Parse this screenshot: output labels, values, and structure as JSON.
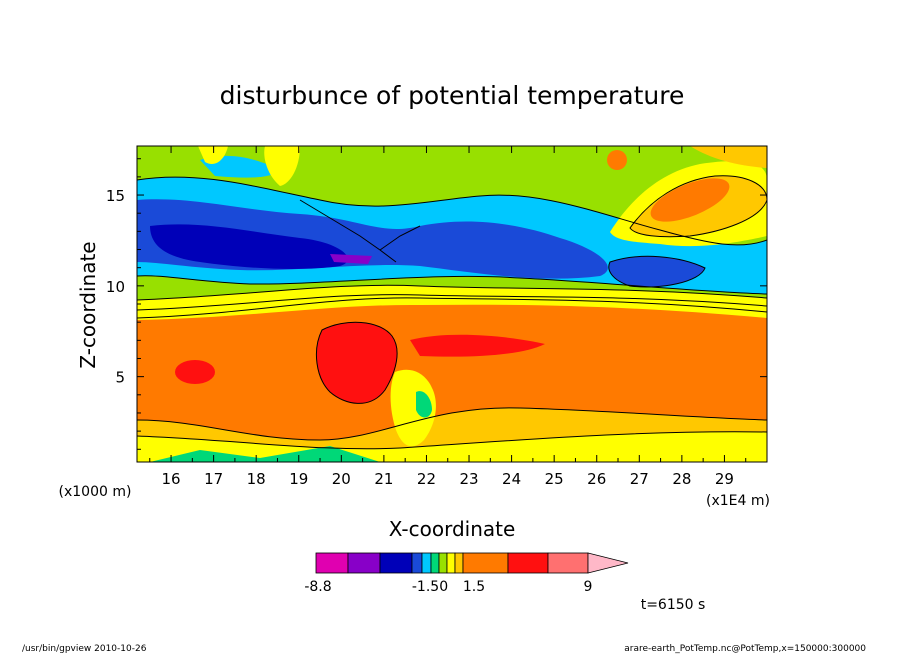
{
  "chart_data": {
    "type": "heatmap",
    "title": "disturbunce of potential temperature",
    "xlabel": "X-coordinate",
    "ylabel": "Z-coordinate",
    "x_unit_label": "(x1E4 m)",
    "y_unit_label": "(x1000 m)",
    "xlim": [
      15.2,
      30.0
    ],
    "ylim": [
      0.3,
      17.7
    ],
    "x_ticks": [
      "16",
      "17",
      "18",
      "19",
      "20",
      "21",
      "22",
      "23",
      "24",
      "25",
      "26",
      "27",
      "28",
      "29"
    ],
    "y_ticks": [
      "5",
      "10",
      "15"
    ],
    "colorbar": {
      "colors": [
        "#e000b0",
        "#8800c8",
        "#0000b8",
        "#1a4ad8",
        "#00c8ff",
        "#00d878",
        "#98e000",
        "#ffff00",
        "#ffc800",
        "#ff7a00",
        "#ff1010",
        "#ff7070",
        "#ffb8c8"
      ],
      "labels": [
        "-8.8",
        "-1.50",
        "1.5",
        "9"
      ]
    },
    "note": "t=6150 s",
    "footer_left": "/usr/bin/gpview   2010-10-26",
    "footer_right": "arare-earth_PotTemp.nc@PotTemp,x=150000:300000"
  }
}
